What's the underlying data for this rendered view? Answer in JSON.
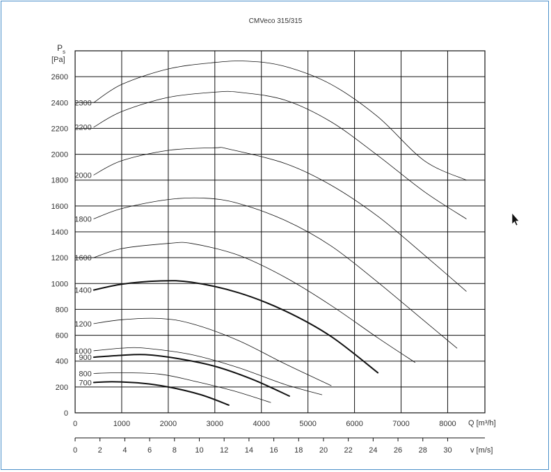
{
  "chart_data": {
    "type": "line",
    "title": "CMVeco 315/315",
    "y_axis": {
      "label_symbol": "P",
      "label_subscript": "s",
      "label_unit": "[Pa]",
      "range": [
        0,
        2800
      ],
      "ticks": [
        0,
        200,
        400,
        600,
        800,
        1000,
        1200,
        1400,
        1600,
        1800,
        2000,
        2200,
        2400,
        2600
      ]
    },
    "x_axis": {
      "label": "Q [m³/h]",
      "range": [
        0,
        8800
      ],
      "ticks": [
        0,
        1000,
        2000,
        3000,
        4000,
        5000,
        6000,
        7000,
        8000
      ],
      "grid_lines": [
        1000,
        2000,
        3000,
        4000,
        5000,
        6000,
        7000,
        8000
      ]
    },
    "x2_axis": {
      "label": "v [m/s]",
      "range": [
        0,
        33
      ],
      "ticks": [
        0,
        2,
        4,
        6,
        8,
        10,
        12,
        14,
        16,
        18,
        20,
        22,
        24,
        26,
        28,
        30
      ]
    },
    "grid": true,
    "series": [
      {
        "name": "2300",
        "bold": false,
        "points": [
          [
            400,
            2400
          ],
          [
            1000,
            2540
          ],
          [
            2000,
            2660
          ],
          [
            3000,
            2710
          ],
          [
            3700,
            2720
          ],
          [
            4500,
            2680
          ],
          [
            5500,
            2540
          ],
          [
            6500,
            2290
          ],
          [
            7500,
            1950
          ],
          [
            8400,
            1800
          ]
        ]
      },
      {
        "name": "2200",
        "bold": false,
        "points": [
          [
            400,
            2210
          ],
          [
            1000,
            2330
          ],
          [
            2000,
            2440
          ],
          [
            3000,
            2480
          ],
          [
            3500,
            2480
          ],
          [
            4500,
            2420
          ],
          [
            5500,
            2250
          ],
          [
            6500,
            1990
          ],
          [
            7500,
            1710
          ],
          [
            8400,
            1500
          ]
        ]
      },
      {
        "name": "2000",
        "bold": false,
        "points": [
          [
            400,
            1840
          ],
          [
            1000,
            1950
          ],
          [
            2000,
            2030
          ],
          [
            3000,
            2050
          ],
          [
            3300,
            2040
          ],
          [
            4500,
            1930
          ],
          [
            5500,
            1760
          ],
          [
            6500,
            1520
          ],
          [
            7500,
            1220
          ],
          [
            8400,
            940
          ]
        ]
      },
      {
        "name": "1800",
        "bold": false,
        "points": [
          [
            400,
            1500
          ],
          [
            1000,
            1580
          ],
          [
            2000,
            1650
          ],
          [
            2800,
            1660
          ],
          [
            3500,
            1620
          ],
          [
            4500,
            1490
          ],
          [
            5500,
            1290
          ],
          [
            6500,
            1010
          ],
          [
            7500,
            710
          ],
          [
            8200,
            500
          ]
        ]
      },
      {
        "name": "1600",
        "bold": false,
        "points": [
          [
            400,
            1200
          ],
          [
            1000,
            1270
          ],
          [
            2000,
            1310
          ],
          [
            2500,
            1310
          ],
          [
            3500,
            1220
          ],
          [
            4500,
            1050
          ],
          [
            5500,
            830
          ],
          [
            6500,
            580
          ],
          [
            7300,
            390
          ]
        ]
      },
      {
        "name": "1400",
        "bold": true,
        "points": [
          [
            400,
            950
          ],
          [
            1000,
            995
          ],
          [
            1800,
            1020
          ],
          [
            2500,
            1010
          ],
          [
            3500,
            930
          ],
          [
            4500,
            790
          ],
          [
            5500,
            590
          ],
          [
            6500,
            310
          ]
        ]
      },
      {
        "name": "1200",
        "bold": false,
        "points": [
          [
            400,
            690
          ],
          [
            1000,
            720
          ],
          [
            1800,
            730
          ],
          [
            2500,
            690
          ],
          [
            3500,
            560
          ],
          [
            4500,
            380
          ],
          [
            5500,
            210
          ]
        ]
      },
      {
        "name": "1000",
        "bold": false,
        "points": [
          [
            400,
            480
          ],
          [
            1000,
            500
          ],
          [
            1500,
            500
          ],
          [
            2500,
            450
          ],
          [
            3500,
            350
          ],
          [
            4500,
            220
          ],
          [
            5300,
            140
          ]
        ]
      },
      {
        "name": "900",
        "bold": true,
        "points": [
          [
            400,
            430
          ],
          [
            1000,
            445
          ],
          [
            1500,
            450
          ],
          [
            2200,
            420
          ],
          [
            3000,
            360
          ],
          [
            3800,
            260
          ],
          [
            4600,
            130
          ]
        ]
      },
      {
        "name": "800",
        "bold": false,
        "points": [
          [
            400,
            305
          ],
          [
            1000,
            310
          ],
          [
            1800,
            300
          ],
          [
            2500,
            250
          ],
          [
            3400,
            170
          ],
          [
            4200,
            80
          ]
        ]
      },
      {
        "name": "700",
        "bold": true,
        "points": [
          [
            400,
            235
          ],
          [
            800,
            240
          ],
          [
            1400,
            230
          ],
          [
            2000,
            200
          ],
          [
            2700,
            140
          ],
          [
            3300,
            60
          ]
        ]
      }
    ]
  }
}
